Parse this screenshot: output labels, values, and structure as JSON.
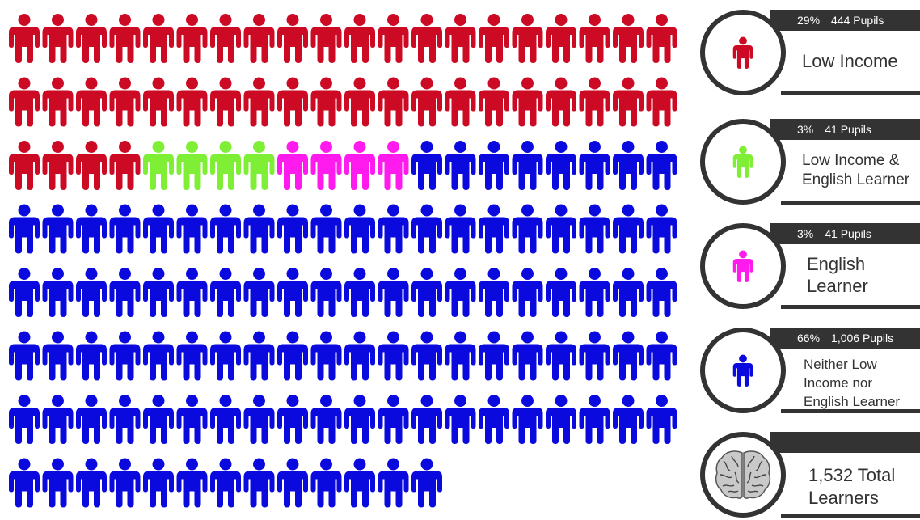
{
  "chart_data": {
    "type": "pictograph",
    "icon": "person-icon",
    "total_icons": 153,
    "series": [
      {
        "name": "Low Income",
        "color": "#cc0a24",
        "icons": 44,
        "percent": "29%",
        "pupils": "444 Pupils"
      },
      {
        "name": "Low Income & English Learner",
        "color": "#7fef35",
        "icons": 4,
        "percent": "3%",
        "pupils": "41 Pupils"
      },
      {
        "name": "English Learner",
        "color": "#ff1aee",
        "icons": 4,
        "percent": "3%",
        "pupils": "41 Pupils"
      },
      {
        "name": "Neither Low Income nor English Learner",
        "color": "#0a0adf",
        "icons": 101,
        "percent": "66%",
        "pupils": "1,006 Pupils"
      }
    ]
  },
  "legend": {
    "cards": [
      {
        "percent": "29%",
        "pupils": "444 Pupils",
        "label": "Low Income",
        "color": "#cc0a24",
        "icon": "person-icon"
      },
      {
        "percent": "3%",
        "pupils": "41 Pupils",
        "label": "Low Income &\nEnglish Learner",
        "color": "#7fef35",
        "icon": "person-icon"
      },
      {
        "percent": "3%",
        "pupils": "41 Pupils",
        "label": "English\nLearner",
        "color": "#ff1aee",
        "icon": "person-icon"
      },
      {
        "percent": "66%",
        "pupils": "1,006 Pupils",
        "label": "Neither Low\nIncome nor\nEnglish Learner",
        "color": "#0a0adf",
        "icon": "person-icon"
      }
    ],
    "total": {
      "label": "1,532 Total\nLearners",
      "icon": "brain-icon"
    }
  }
}
